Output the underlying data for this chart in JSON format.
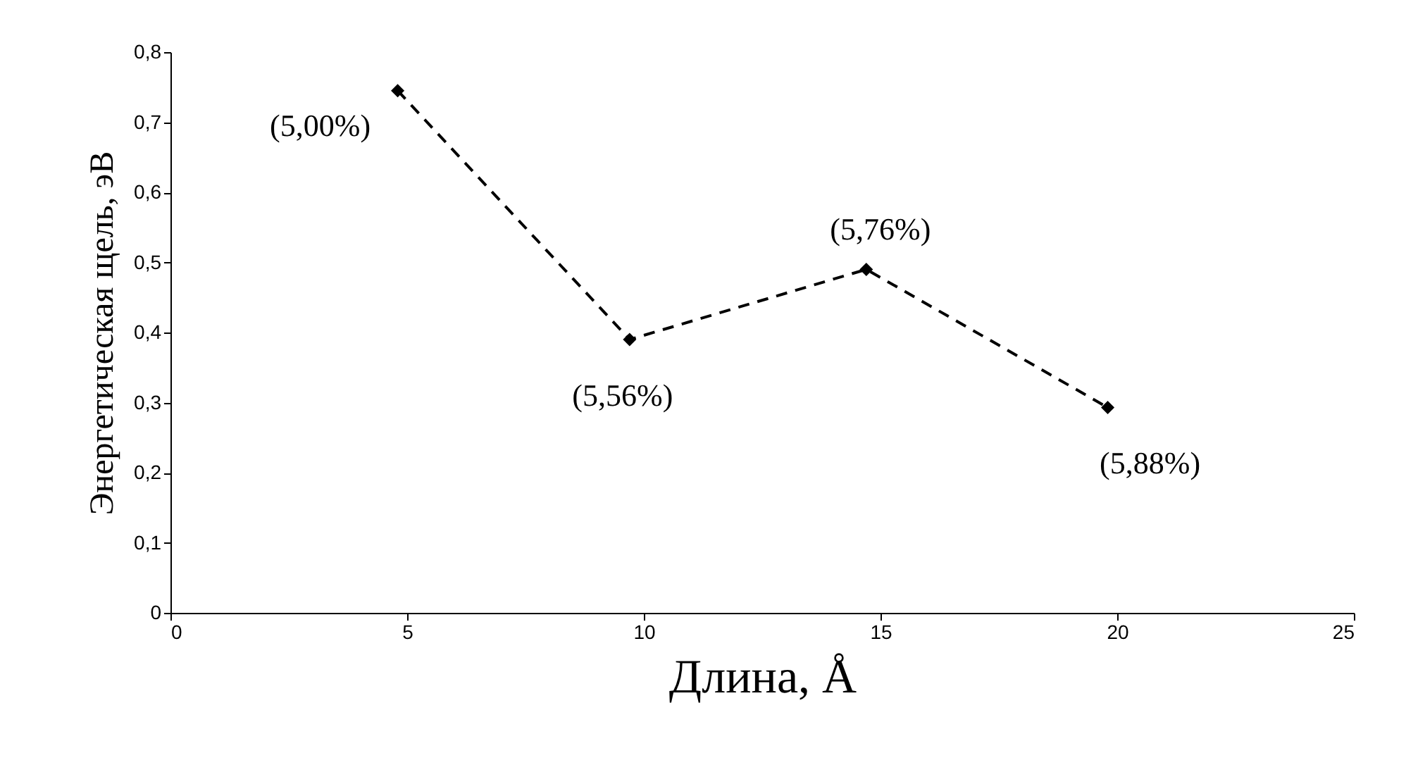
{
  "chart_data": {
    "type": "line",
    "xlabel": "Длина, Å",
    "ylabel": "Энергетическая щель, эВ",
    "x": [
      4.8,
      9.7,
      14.7,
      19.8
    ],
    "series": [
      {
        "color": "#000000",
        "values": [
          0.745,
          0.39,
          0.49,
          0.293
        ]
      }
    ],
    "xlim": [
      0,
      25
    ],
    "xticks": [
      0,
      5,
      10,
      15,
      20,
      25
    ],
    "ylim": [
      0,
      0.8
    ],
    "yticks": [
      {
        "value": 0,
        "label": "0"
      },
      {
        "value": 0.1,
        "label": "0,1"
      },
      {
        "value": 0.2,
        "label": "0,2"
      },
      {
        "value": 0.3,
        "label": "0,3"
      },
      {
        "value": 0.4,
        "label": "0,4"
      },
      {
        "value": 0.5,
        "label": "0,5"
      },
      {
        "value": 0.6,
        "label": "0,6"
      },
      {
        "value": 0.7,
        "label": "0,7"
      },
      {
        "value": 0.8,
        "label": "0,8"
      }
    ],
    "marker": "diamond",
    "line_style": "dashed",
    "grid": false,
    "annotations": [
      {
        "text": "(5,00%)",
        "x": 4.8,
        "y": 0.745
      },
      {
        "text": "(5,56%)",
        "x": 9.7,
        "y": 0.39
      },
      {
        "text": "(5,76%)",
        "x": 14.7,
        "y": 0.49
      },
      {
        "text": "(5,88%)",
        "x": 19.8,
        "y": 0.293
      }
    ]
  }
}
